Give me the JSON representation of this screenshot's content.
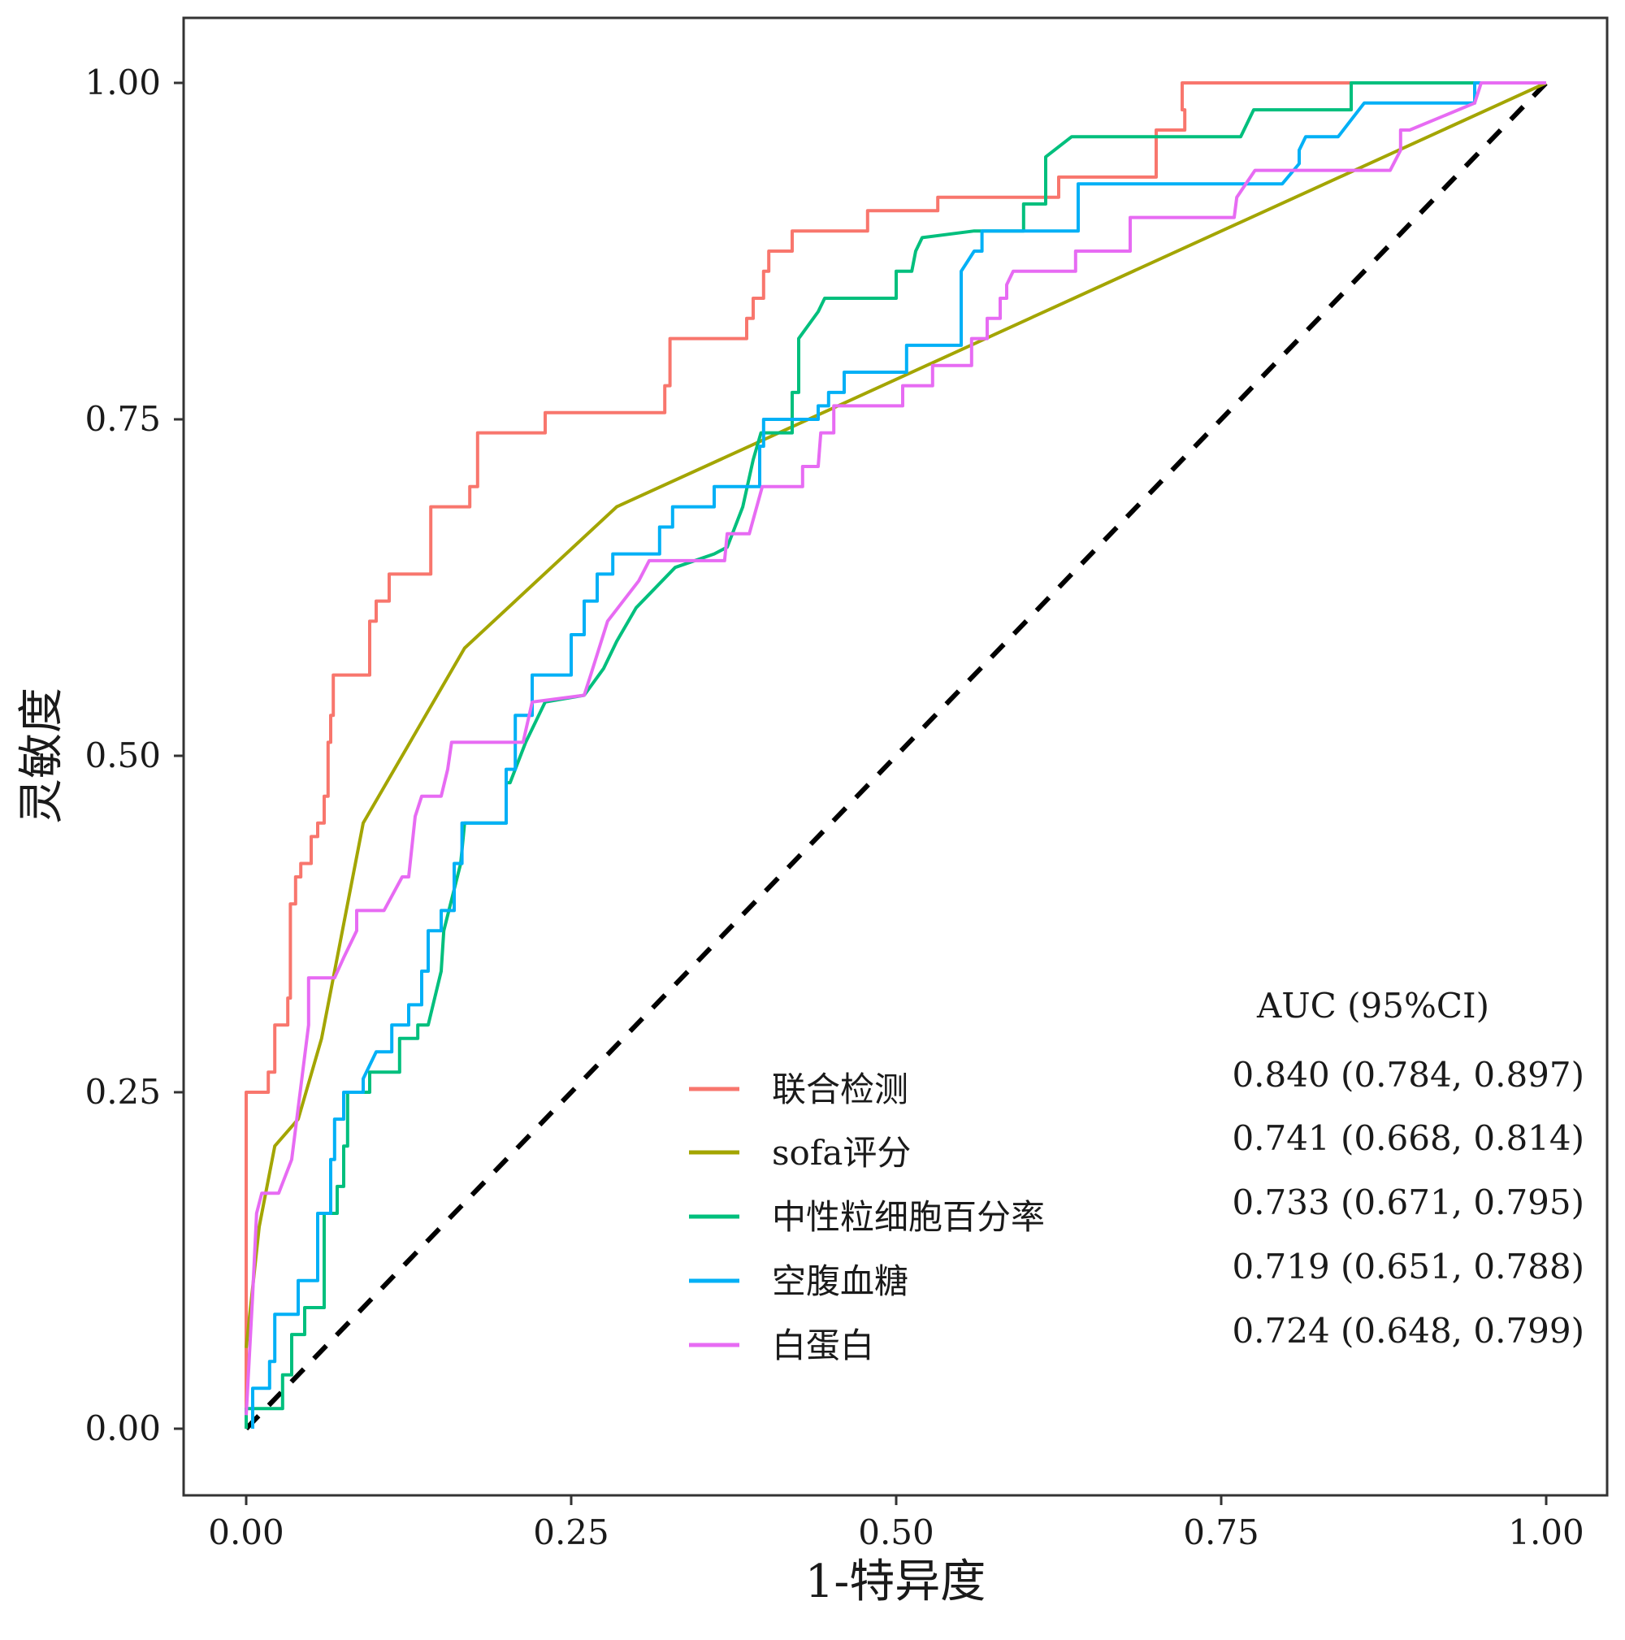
{
  "chart_data": {
    "type": "line",
    "xlabel": "1-特异度",
    "ylabel": "灵敏度",
    "xlim": [
      0,
      1
    ],
    "ylim": [
      0,
      1
    ],
    "x_ticks": [
      "0.00",
      "0.25",
      "0.50",
      "0.75",
      "1.00"
    ],
    "y_ticks": [
      "0.00",
      "0.25",
      "0.50",
      "0.75",
      "1.00"
    ],
    "grid": false,
    "legend_position": "bottom-right",
    "reference_line": {
      "from": [
        0,
        0
      ],
      "to": [
        1,
        1
      ],
      "style": "dashed",
      "color": "#000000"
    },
    "auc_header": "AUC (95%CI)",
    "series": [
      {
        "name": "联合检测",
        "color": "#F8766D",
        "auc": "0.840 (0.784, 0.897)",
        "points": [
          [
            0,
            0
          ],
          [
            0,
            0.25
          ],
          [
            0.017,
            0.25
          ],
          [
            0.017,
            0.265
          ],
          [
            0.022,
            0.265
          ],
          [
            0.022,
            0.3
          ],
          [
            0.032,
            0.3
          ],
          [
            0.032,
            0.32
          ],
          [
            0.034,
            0.32
          ],
          [
            0.034,
            0.39
          ],
          [
            0.038,
            0.39
          ],
          [
            0.038,
            0.41
          ],
          [
            0.042,
            0.41
          ],
          [
            0.042,
            0.42
          ],
          [
            0.05,
            0.42
          ],
          [
            0.05,
            0.44
          ],
          [
            0.055,
            0.44
          ],
          [
            0.055,
            0.45
          ],
          [
            0.06,
            0.45
          ],
          [
            0.06,
            0.47
          ],
          [
            0.063,
            0.47
          ],
          [
            0.063,
            0.51
          ],
          [
            0.065,
            0.51
          ],
          [
            0.065,
            0.53
          ],
          [
            0.067,
            0.53
          ],
          [
            0.067,
            0.56
          ],
          [
            0.095,
            0.56
          ],
          [
            0.095,
            0.6
          ],
          [
            0.1,
            0.6
          ],
          [
            0.1,
            0.615
          ],
          [
            0.11,
            0.615
          ],
          [
            0.11,
            0.635
          ],
          [
            0.142,
            0.635
          ],
          [
            0.142,
            0.685
          ],
          [
            0.172,
            0.685
          ],
          [
            0.172,
            0.7
          ],
          [
            0.178,
            0.7
          ],
          [
            0.178,
            0.74
          ],
          [
            0.23,
            0.74
          ],
          [
            0.23,
            0.755
          ],
          [
            0.322,
            0.755
          ],
          [
            0.322,
            0.775
          ],
          [
            0.326,
            0.775
          ],
          [
            0.326,
            0.81
          ],
          [
            0.385,
            0.81
          ],
          [
            0.385,
            0.825
          ],
          [
            0.39,
            0.825
          ],
          [
            0.39,
            0.84
          ],
          [
            0.398,
            0.84
          ],
          [
            0.398,
            0.86
          ],
          [
            0.402,
            0.86
          ],
          [
            0.402,
            0.875
          ],
          [
            0.42,
            0.875
          ],
          [
            0.42,
            0.89
          ],
          [
            0.478,
            0.89
          ],
          [
            0.478,
            0.905
          ],
          [
            0.532,
            0.905
          ],
          [
            0.532,
            0.915
          ],
          [
            0.625,
            0.915
          ],
          [
            0.625,
            0.93
          ],
          [
            0.7,
            0.93
          ],
          [
            0.7,
            0.965
          ],
          [
            0.722,
            0.965
          ],
          [
            0.722,
            0.98
          ],
          [
            0.72,
            0.98
          ],
          [
            0.72,
            1.0
          ],
          [
            1.0,
            1.0
          ]
        ]
      },
      {
        "name": "sofa评分",
        "color": "#A3A500",
        "auc": "0.741 (0.668, 0.814)",
        "points": [
          [
            0,
            0.06
          ],
          [
            0.01,
            0.15
          ],
          [
            0.022,
            0.21
          ],
          [
            0.04,
            0.23
          ],
          [
            0.058,
            0.29
          ],
          [
            0.09,
            0.45
          ],
          [
            0.168,
            0.58
          ],
          [
            0.285,
            0.685
          ],
          [
            1.0,
            1.0
          ]
        ]
      },
      {
        "name": "中性粒细胞百分率",
        "color": "#00BF7D",
        "auc": "0.733 (0.671, 0.795)",
        "points": [
          [
            0,
            0
          ],
          [
            0,
            0.015
          ],
          [
            0.028,
            0.015
          ],
          [
            0.028,
            0.04
          ],
          [
            0.035,
            0.04
          ],
          [
            0.035,
            0.07
          ],
          [
            0.045,
            0.07
          ],
          [
            0.045,
            0.09
          ],
          [
            0.06,
            0.09
          ],
          [
            0.06,
            0.16
          ],
          [
            0.07,
            0.16
          ],
          [
            0.07,
            0.18
          ],
          [
            0.075,
            0.18
          ],
          [
            0.075,
            0.21
          ],
          [
            0.078,
            0.21
          ],
          [
            0.078,
            0.25
          ],
          [
            0.095,
            0.25
          ],
          [
            0.095,
            0.265
          ],
          [
            0.118,
            0.265
          ],
          [
            0.118,
            0.29
          ],
          [
            0.132,
            0.29
          ],
          [
            0.132,
            0.3
          ],
          [
            0.14,
            0.3
          ],
          [
            0.15,
            0.34
          ],
          [
            0.152,
            0.37
          ],
          [
            0.165,
            0.42
          ],
          [
            0.168,
            0.45
          ],
          [
            0.2,
            0.45
          ],
          [
            0.2,
            0.48
          ],
          [
            0.203,
            0.48
          ],
          [
            0.215,
            0.51
          ],
          [
            0.23,
            0.54
          ],
          [
            0.26,
            0.545
          ],
          [
            0.275,
            0.565
          ],
          [
            0.285,
            0.585
          ],
          [
            0.3,
            0.61
          ],
          [
            0.33,
            0.64
          ],
          [
            0.36,
            0.65
          ],
          [
            0.37,
            0.655
          ],
          [
            0.382,
            0.685
          ],
          [
            0.39,
            0.72
          ],
          [
            0.39,
            0.72
          ],
          [
            0.396,
            0.74
          ],
          [
            0.42,
            0.74
          ],
          [
            0.42,
            0.77
          ],
          [
            0.425,
            0.77
          ],
          [
            0.425,
            0.81
          ],
          [
            0.44,
            0.83
          ],
          [
            0.445,
            0.84
          ],
          [
            0.5,
            0.84
          ],
          [
            0.5,
            0.86
          ],
          [
            0.512,
            0.86
          ],
          [
            0.515,
            0.875
          ],
          [
            0.52,
            0.885
          ],
          [
            0.56,
            0.89
          ],
          [
            0.598,
            0.89
          ],
          [
            0.598,
            0.91
          ],
          [
            0.615,
            0.91
          ],
          [
            0.615,
            0.945
          ],
          [
            0.635,
            0.96
          ],
          [
            0.765,
            0.96
          ],
          [
            0.775,
            0.98
          ],
          [
            0.85,
            0.98
          ],
          [
            0.85,
            1.0
          ],
          [
            1.0,
            1.0
          ]
        ]
      },
      {
        "name": "空腹血糖",
        "color": "#00B0F6",
        "auc": "0.719 (0.651, 0.788)",
        "points": [
          [
            0.005,
            0
          ],
          [
            0.005,
            0.03
          ],
          [
            0.018,
            0.03
          ],
          [
            0.018,
            0.05
          ],
          [
            0.022,
            0.05
          ],
          [
            0.022,
            0.085
          ],
          [
            0.04,
            0.085
          ],
          [
            0.04,
            0.11
          ],
          [
            0.055,
            0.11
          ],
          [
            0.055,
            0.16
          ],
          [
            0.065,
            0.16
          ],
          [
            0.065,
            0.2
          ],
          [
            0.068,
            0.2
          ],
          [
            0.068,
            0.23
          ],
          [
            0.075,
            0.23
          ],
          [
            0.075,
            0.25
          ],
          [
            0.09,
            0.25
          ],
          [
            0.09,
            0.26
          ],
          [
            0.1,
            0.28
          ],
          [
            0.112,
            0.28
          ],
          [
            0.112,
            0.3
          ],
          [
            0.125,
            0.3
          ],
          [
            0.125,
            0.315
          ],
          [
            0.135,
            0.315
          ],
          [
            0.135,
            0.34
          ],
          [
            0.14,
            0.34
          ],
          [
            0.14,
            0.37
          ],
          [
            0.15,
            0.37
          ],
          [
            0.15,
            0.385
          ],
          [
            0.16,
            0.385
          ],
          [
            0.16,
            0.42
          ],
          [
            0.166,
            0.42
          ],
          [
            0.166,
            0.45
          ],
          [
            0.2,
            0.45
          ],
          [
            0.2,
            0.49
          ],
          [
            0.207,
            0.49
          ],
          [
            0.207,
            0.53
          ],
          [
            0.22,
            0.53
          ],
          [
            0.22,
            0.56
          ],
          [
            0.25,
            0.56
          ],
          [
            0.25,
            0.59
          ],
          [
            0.26,
            0.59
          ],
          [
            0.26,
            0.615
          ],
          [
            0.27,
            0.615
          ],
          [
            0.27,
            0.635
          ],
          [
            0.282,
            0.635
          ],
          [
            0.282,
            0.65
          ],
          [
            0.318,
            0.65
          ],
          [
            0.318,
            0.67
          ],
          [
            0.328,
            0.67
          ],
          [
            0.328,
            0.685
          ],
          [
            0.36,
            0.685
          ],
          [
            0.36,
            0.7
          ],
          [
            0.395,
            0.7
          ],
          [
            0.395,
            0.73
          ],
          [
            0.398,
            0.73
          ],
          [
            0.398,
            0.75
          ],
          [
            0.44,
            0.75
          ],
          [
            0.44,
            0.76
          ],
          [
            0.448,
            0.76
          ],
          [
            0.448,
            0.77
          ],
          [
            0.46,
            0.77
          ],
          [
            0.46,
            0.785
          ],
          [
            0.508,
            0.785
          ],
          [
            0.508,
            0.805
          ],
          [
            0.55,
            0.805
          ],
          [
            0.55,
            0.86
          ],
          [
            0.56,
            0.875
          ],
          [
            0.56,
            0.875
          ],
          [
            0.566,
            0.875
          ],
          [
            0.566,
            0.89
          ],
          [
            0.64,
            0.89
          ],
          [
            0.64,
            0.925
          ],
          [
            0.797,
            0.925
          ],
          [
            0.81,
            0.94
          ],
          [
            0.81,
            0.95
          ],
          [
            0.815,
            0.96
          ],
          [
            0.84,
            0.96
          ],
          [
            0.86,
            0.985
          ],
          [
            0.945,
            0.985
          ],
          [
            0.945,
            1.0
          ],
          [
            1.0,
            1.0
          ]
        ]
      },
      {
        "name": "白蛋白",
        "color": "#E76BF3",
        "auc": "0.724 (0.648, 0.799)",
        "points": [
          [
            0,
            0.01
          ],
          [
            0.005,
            0.1
          ],
          [
            0.008,
            0.16
          ],
          [
            0.012,
            0.175
          ],
          [
            0.025,
            0.175
          ],
          [
            0.035,
            0.2
          ],
          [
            0.048,
            0.3
          ],
          [
            0.048,
            0.335
          ],
          [
            0.068,
            0.335
          ],
          [
            0.075,
            0.35
          ],
          [
            0.085,
            0.37
          ],
          [
            0.085,
            0.385
          ],
          [
            0.106,
            0.385
          ],
          [
            0.12,
            0.41
          ],
          [
            0.125,
            0.41
          ],
          [
            0.13,
            0.455
          ],
          [
            0.135,
            0.47
          ],
          [
            0.15,
            0.47
          ],
          [
            0.155,
            0.49
          ],
          [
            0.158,
            0.51
          ],
          [
            0.213,
            0.51
          ],
          [
            0.22,
            0.54
          ],
          [
            0.26,
            0.545
          ],
          [
            0.265,
            0.56
          ],
          [
            0.278,
            0.6
          ],
          [
            0.302,
            0.63
          ],
          [
            0.31,
            0.645
          ],
          [
            0.368,
            0.645
          ],
          [
            0.37,
            0.665
          ],
          [
            0.387,
            0.665
          ],
          [
            0.397,
            0.7
          ],
          [
            0.428,
            0.7
          ],
          [
            0.428,
            0.715
          ],
          [
            0.44,
            0.715
          ],
          [
            0.442,
            0.74
          ],
          [
            0.452,
            0.74
          ],
          [
            0.452,
            0.76
          ],
          [
            0.505,
            0.76
          ],
          [
            0.505,
            0.775
          ],
          [
            0.528,
            0.775
          ],
          [
            0.528,
            0.79
          ],
          [
            0.558,
            0.79
          ],
          [
            0.558,
            0.81
          ],
          [
            0.57,
            0.81
          ],
          [
            0.57,
            0.825
          ],
          [
            0.58,
            0.825
          ],
          [
            0.58,
            0.84
          ],
          [
            0.585,
            0.84
          ],
          [
            0.585,
            0.85
          ],
          [
            0.59,
            0.86
          ],
          [
            0.638,
            0.86
          ],
          [
            0.638,
            0.875
          ],
          [
            0.68,
            0.875
          ],
          [
            0.68,
            0.9
          ],
          [
            0.76,
            0.9
          ],
          [
            0.762,
            0.915
          ],
          [
            0.776,
            0.935
          ],
          [
            0.88,
            0.935
          ],
          [
            0.888,
            0.95
          ],
          [
            0.888,
            0.965
          ],
          [
            0.895,
            0.965
          ],
          [
            0.945,
            0.985
          ],
          [
            0.95,
            1.0
          ],
          [
            1.0,
            1.0
          ]
        ]
      }
    ]
  }
}
